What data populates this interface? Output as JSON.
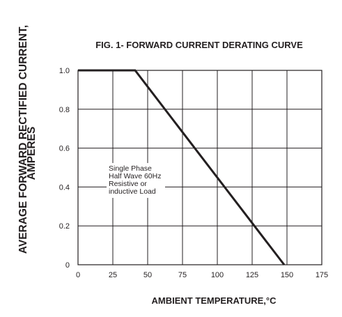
{
  "chart_data": {
    "type": "line",
    "title": "FIG. 1- FORWARD CURRENT DERATING CURVE",
    "xlabel": "AMBIENT TEMPERATURE,°C",
    "ylabel_lines": [
      "AVERAGE FORWARD RECTIFIED CURRENT,",
      "AMPERES"
    ],
    "xlim": [
      0,
      175
    ],
    "ylim": [
      0,
      1.0
    ],
    "x_ticks": [
      0,
      25,
      50,
      75,
      100,
      125,
      150,
      175
    ],
    "x_tick_labels": [
      "0",
      "25",
      "50",
      "75",
      "100",
      "125",
      "150",
      "175"
    ],
    "y_ticks": [
      0,
      0.2,
      0.4,
      0.6,
      0.8,
      1.0
    ],
    "y_tick_labels": [
      "0",
      "0.2",
      "0.4",
      "0.6",
      "0.8",
      "1.0"
    ],
    "grid": true,
    "series": [
      {
        "x": [
          0,
          41,
          148
        ],
        "y": [
          1.0,
          1.0,
          0
        ]
      }
    ],
    "annotation": {
      "lines": [
        "Single Phase",
        "Half Wave 60Hz",
        "Resistive or",
        "inductive Load"
      ],
      "x": 22,
      "y": 0.43
    },
    "colors": {
      "line": "#231f20",
      "grid": "#231f20",
      "text": "#231f20"
    }
  }
}
